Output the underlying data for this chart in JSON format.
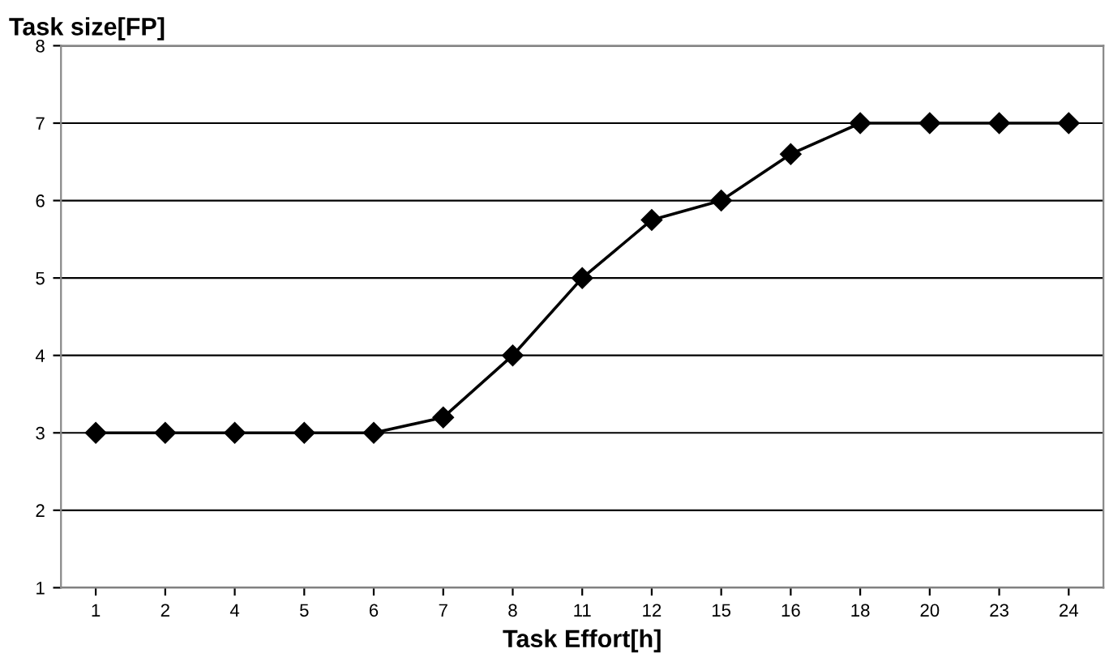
{
  "chart_data": {
    "type": "line",
    "xlabel": "Task Effort[h]",
    "ylabel": "Task size[FP]",
    "categories": [
      "1",
      "2",
      "4",
      "5",
      "6",
      "7",
      "8",
      "11",
      "12",
      "15",
      "16",
      "18",
      "20",
      "23",
      "24"
    ],
    "series": [
      {
        "color": "#000000",
        "values": [
          3,
          3,
          3,
          3,
          3,
          3.2,
          4,
          5,
          5.75,
          6,
          6.6,
          7,
          7,
          7,
          7
        ]
      }
    ],
    "ylim": [
      1,
      8
    ],
    "yticks": [
      1,
      2,
      3,
      4,
      5,
      6,
      7,
      8
    ],
    "grid": "y",
    "marker": "diamond",
    "line_style": "solid",
    "legend": false
  }
}
